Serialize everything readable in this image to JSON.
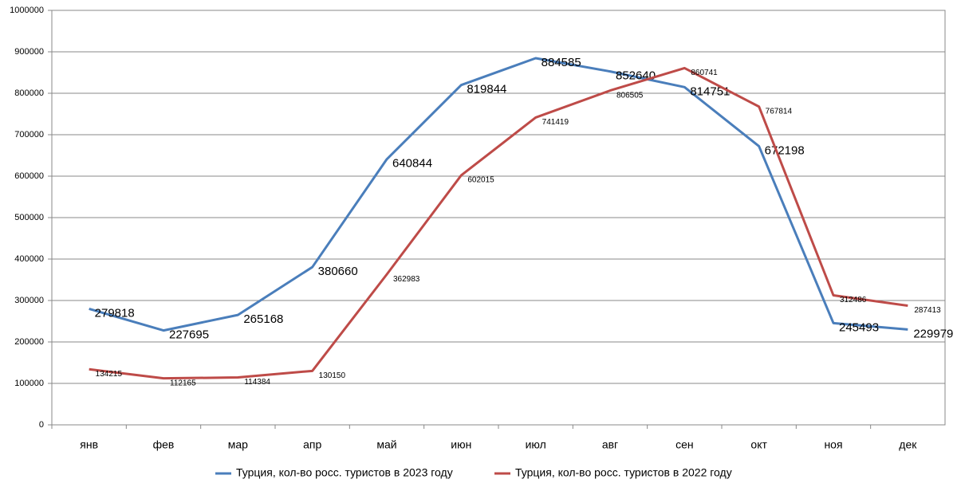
{
  "chart_data": {
    "type": "line",
    "categories": [
      "янв",
      "фев",
      "мар",
      "апр",
      "май",
      "июн",
      "июл",
      "авг",
      "сен",
      "окт",
      "ноя",
      "дек"
    ],
    "series": [
      {
        "name": "Турция, кол-во росс. туристов в 2023 году",
        "color": "#4a7ebb",
        "values": [
          279818,
          227695,
          265168,
          380660,
          640844,
          819844,
          884585,
          852640,
          814751,
          672198,
          245493,
          229979
        ]
      },
      {
        "name": "Турция, кол-во росс. туристов в 2022 году",
        "color": "#be4b48",
        "values": [
          134215,
          112165,
          114384,
          130150,
          362983,
          602015,
          741419,
          806505,
          860741,
          767814,
          312486,
          287413
        ]
      }
    ],
    "ylim": [
      0,
      1000000
    ],
    "yticks": [
      0,
      100000,
      200000,
      300000,
      400000,
      500000,
      600000,
      700000,
      800000,
      900000,
      1000000
    ],
    "grid": true,
    "legend": "bottom"
  }
}
